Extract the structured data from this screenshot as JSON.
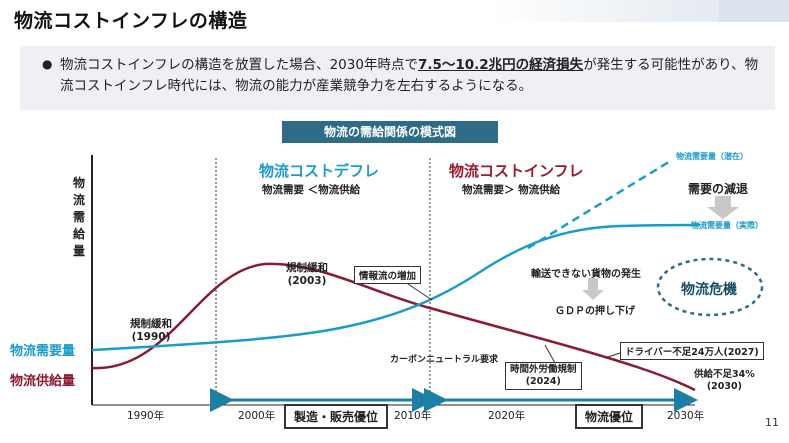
{
  "title": "物流コストインフレの構造",
  "bullet": {
    "text_before": "物流コストインフレの構造を放置した場合、2030年時点で",
    "emphasis": "7.5〜10.2兆円の経済損失",
    "text_after": "が発生する可能性があり、物流コストインフレ時代には、物流の能力が産業競争力を左右するようになる。"
  },
  "diagram_title": "物流の需給関係の模式図",
  "y_axis_label": "物流需給量",
  "phases": {
    "deflation": {
      "title": "物流コストデフレ",
      "subtitle": "物流需要 ＜物流供給",
      "color": "#1d9bc7"
    },
    "inflation": {
      "title": "物流コストインフレ",
      "subtitle": "物流需要＞ 物流供給",
      "color": "#9b1c2e"
    }
  },
  "series_labels": {
    "demand": "物流需要量",
    "supply": "物流供給量",
    "demand_latent": "物流需要量（潜在）",
    "demand_actual": "物流需要量（実際）"
  },
  "annotations": {
    "dereg_1990": "規制緩和\n(1990)",
    "dereg_2003": "規制緩和\n(2003)",
    "info_flow": "情報流の増加",
    "carbon": "カーボンニュートラル要求",
    "overtime": "時間外労働規制\n(2024)",
    "driver": "ドライバー不足24万人(2027)",
    "supply_short": "供給不足34%\n(2030)",
    "demand_reduction": "需要の減退",
    "undeliverable": "輸送できない貨物の発生",
    "gdp": "ＧＤＰの押し下げ",
    "crisis": "物流危機"
  },
  "x_axis": {
    "ticks": [
      "1990年",
      "2000年",
      "2010年",
      "2020年",
      "2030年"
    ],
    "arrow_left": "製造・販売優位",
    "arrow_right": "物流優位"
  },
  "colors": {
    "demand": "#1d9bc7",
    "supply": "#8b1a33",
    "arrow": "#1d7fa6",
    "header": "#2d6c84"
  },
  "page_number": "11"
}
